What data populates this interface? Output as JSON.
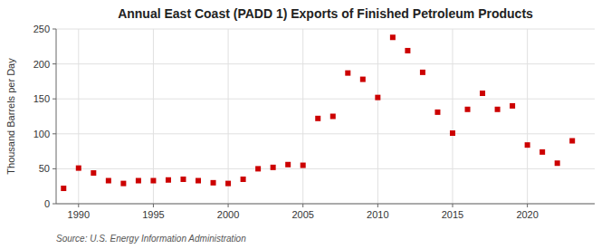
{
  "chart_data": {
    "type": "scatter",
    "title": "Annual East Coast (PADD 1) Exports of Finished Petroleum Products",
    "ylabel": "Thousand Barrels per Day",
    "source": "Source: U.S. Energy Information Administration",
    "x": [
      1989,
      1990,
      1991,
      1992,
      1993,
      1994,
      1995,
      1996,
      1997,
      1998,
      1999,
      2000,
      2001,
      2002,
      2003,
      2004,
      2005,
      2006,
      2007,
      2008,
      2009,
      2010,
      2011,
      2012,
      2013,
      2014,
      2015,
      2016,
      2017,
      2018,
      2019,
      2020,
      2021,
      2022,
      2023
    ],
    "values": [
      22,
      51,
      44,
      33,
      29,
      33,
      33,
      34,
      35,
      33,
      30,
      29,
      35,
      50,
      52,
      56,
      55,
      122,
      125,
      187,
      178,
      152,
      238,
      219,
      188,
      131,
      101,
      135,
      158,
      135,
      140,
      84,
      74,
      58,
      90
    ],
    "color": "#cc0000",
    "marker": "square",
    "xlim": [
      1988.5,
      2024.5
    ],
    "xticks": [
      1990,
      1995,
      2000,
      2005,
      2010,
      2015,
      2020
    ],
    "ylim": [
      0,
      250
    ],
    "yticks": [
      0,
      50,
      100,
      150,
      200,
      250
    ],
    "grid": true
  }
}
